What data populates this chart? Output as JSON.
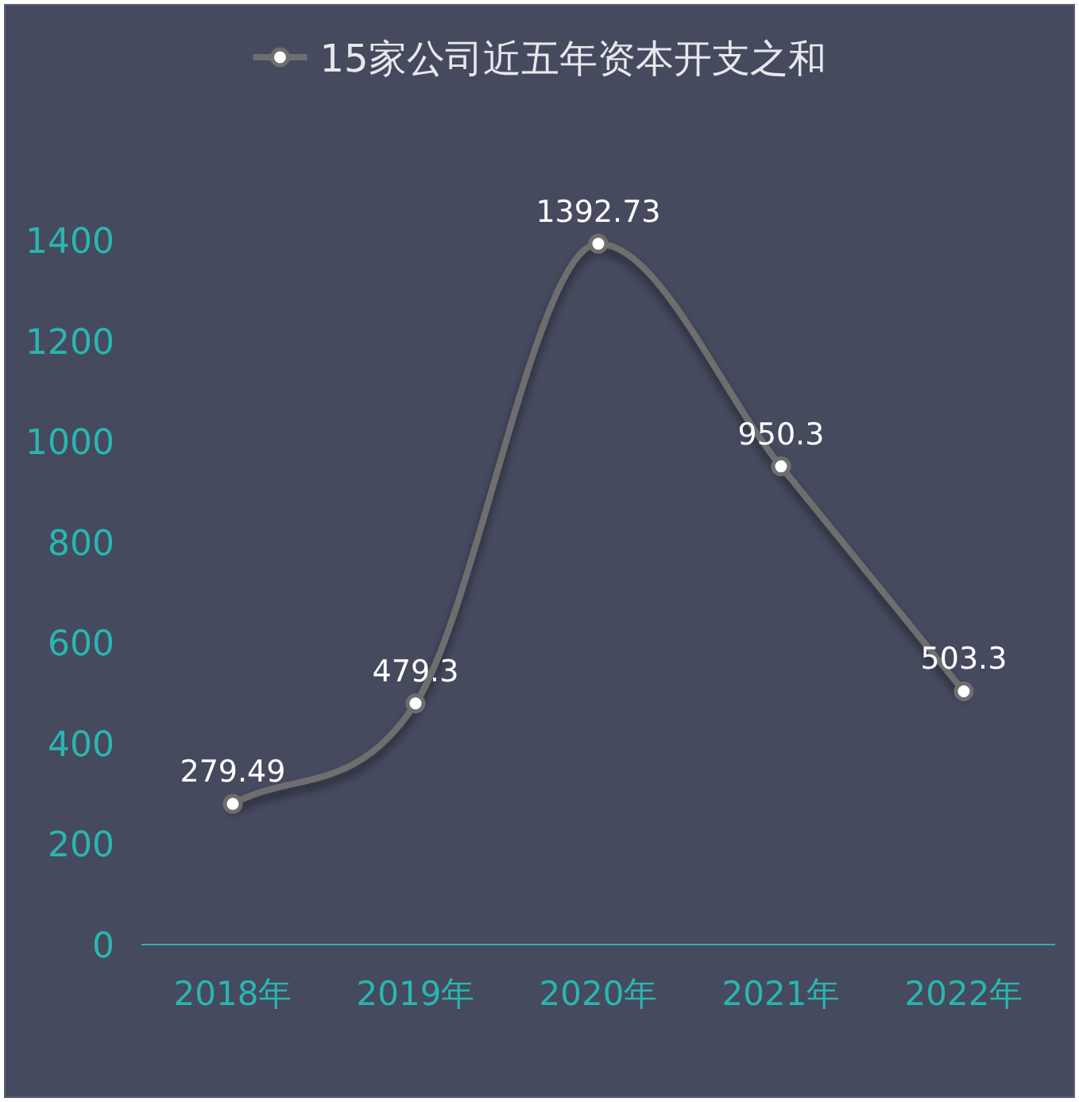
{
  "chart_data": {
    "type": "line",
    "categories": [
      "2018年",
      "2019年",
      "2020年",
      "2021年",
      "2022年"
    ],
    "series": [
      {
        "name": "15家公司近五年资本开支之和",
        "color": "#6e6e6e",
        "values": [
          279.49,
          479.3,
          1392.73,
          950.3,
          503.3
        ]
      }
    ],
    "ylim": [
      0,
      1400
    ],
    "yticks": [
      0,
      200,
      400,
      600,
      800,
      1000,
      1200,
      1400
    ],
    "grid": false,
    "legend": "top",
    "marker": "circle",
    "line_style": "solid",
    "data_labels": true
  }
}
